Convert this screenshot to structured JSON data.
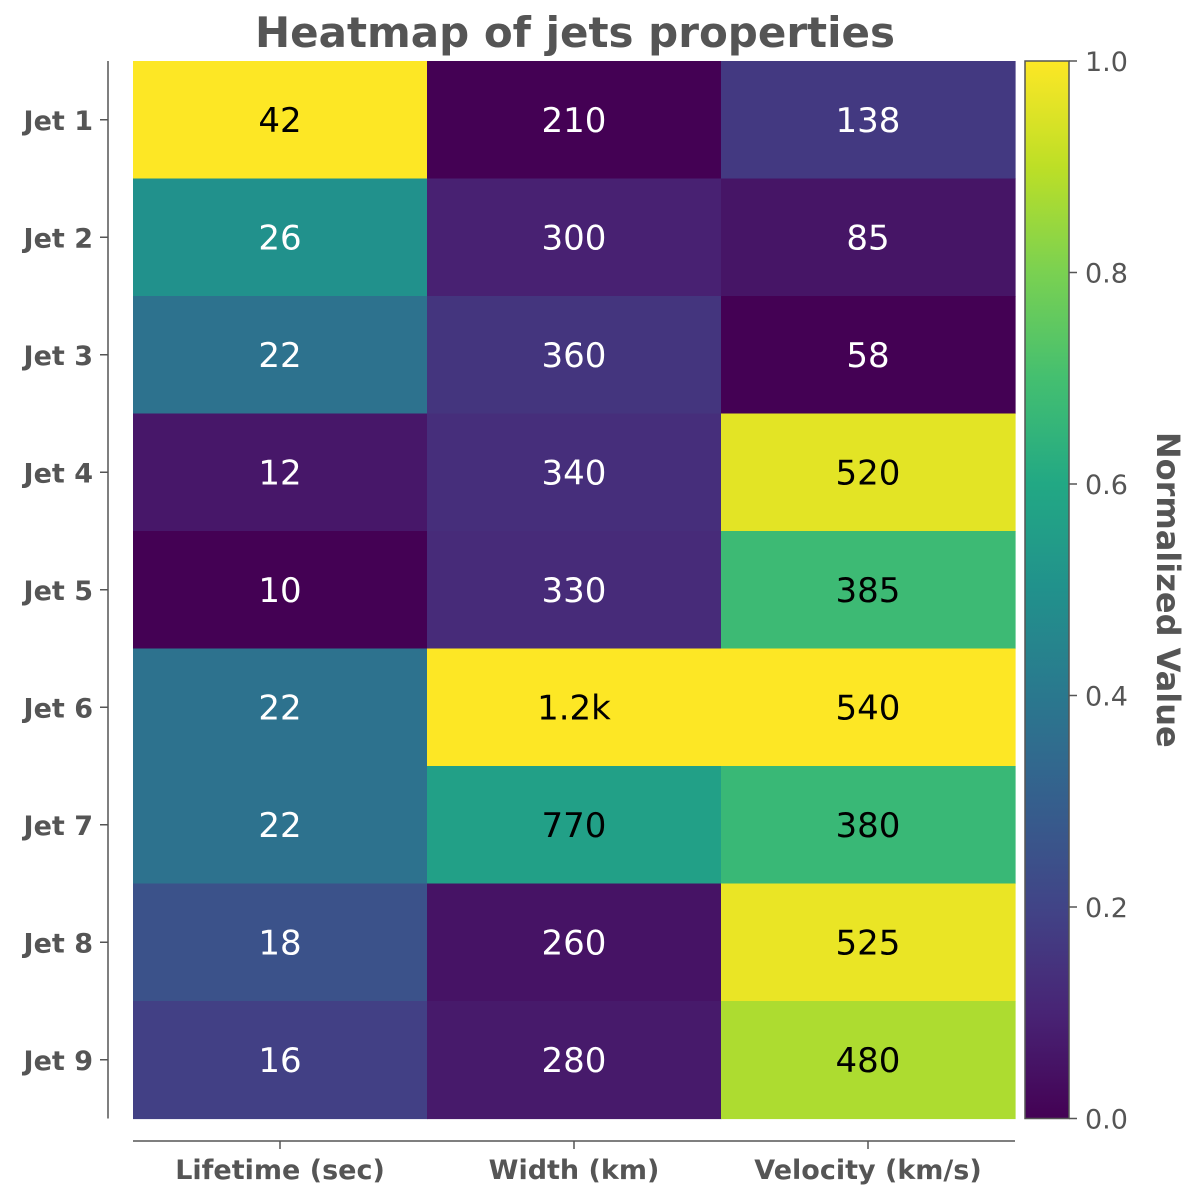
{
  "chart_data": {
    "type": "heatmap",
    "title": "Heatmap of jets properties",
    "rows": [
      "Jet 1",
      "Jet 2",
      "Jet 3",
      "Jet 4",
      "Jet 5",
      "Jet 6",
      "Jet 7",
      "Jet 8",
      "Jet 9"
    ],
    "columns": [
      "Lifetime (sec)",
      "Width (km)",
      "Velocity (km/s)"
    ],
    "cell_labels": [
      [
        "42",
        "210",
        "138"
      ],
      [
        "26",
        "300",
        "85"
      ],
      [
        "22",
        "360",
        "58"
      ],
      [
        "12",
        "340",
        "520"
      ],
      [
        "10",
        "330",
        "385"
      ],
      [
        "22",
        "1.2k",
        "540"
      ],
      [
        "22",
        "770",
        "380"
      ],
      [
        "18",
        "260",
        "525"
      ],
      [
        "16",
        "280",
        "480"
      ]
    ],
    "normalized_values": [
      [
        1.0,
        0.0,
        0.165
      ],
      [
        0.5,
        0.091,
        0.056
      ],
      [
        0.375,
        0.152,
        0.0
      ],
      [
        0.063,
        0.131,
        0.96
      ],
      [
        0.0,
        0.121,
        0.679
      ],
      [
        0.375,
        1.0,
        1.0
      ],
      [
        0.375,
        0.566,
        0.669
      ],
      [
        0.25,
        0.051,
        0.971
      ],
      [
        0.188,
        0.071,
        0.876
      ]
    ],
    "colorbar": {
      "label": "Normalized Value",
      "ticks": [
        "0.0",
        "0.2",
        "0.4",
        "0.6",
        "0.8",
        "1.0"
      ],
      "range": [
        0,
        1
      ],
      "colormap": "viridis"
    }
  }
}
